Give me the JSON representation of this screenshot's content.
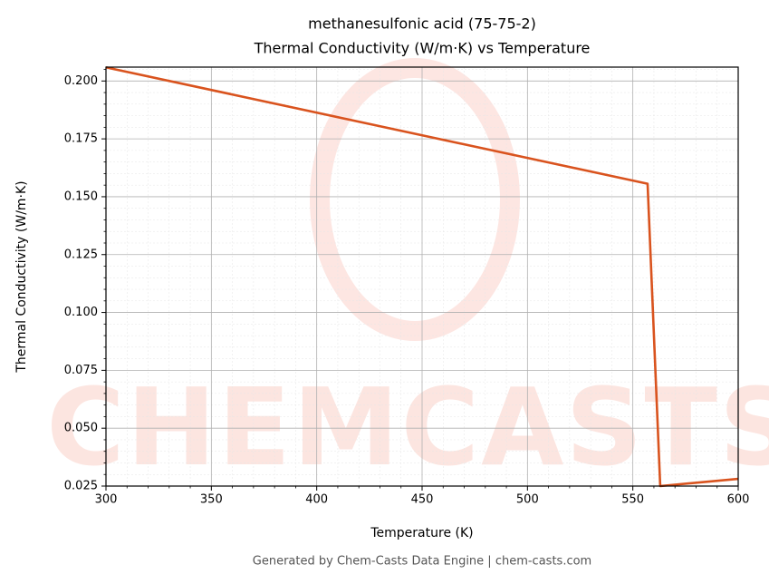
{
  "chart_data": {
    "type": "line",
    "title": "methanesulfonic acid (75-75-2)",
    "subtitle": "Thermal Conductivity (W/m·K) vs Temperature",
    "x_label": "Temperature (K)",
    "y_label": "Thermal Conductivity (W/m·K)",
    "footer": "Generated by Chem-Casts Data Engine | chem-casts.com",
    "watermark": "CHEMCASTS",
    "x": [
      300,
      557,
      563,
      600
    ],
    "series": [
      {
        "name": "Thermal Conductivity",
        "color": "#d9531e",
        "values": [
          0.2059,
          0.1556,
          0.025,
          0.0281
        ]
      }
    ],
    "xlim": [
      300,
      600
    ],
    "ylim": [
      0.025,
      0.206
    ],
    "xticks": [
      300,
      350,
      400,
      450,
      500,
      550,
      600
    ],
    "yticks": [
      {
        "value": 0.025,
        "label": "0.025"
      },
      {
        "value": 0.05,
        "label": "0.050"
      },
      {
        "value": 0.075,
        "label": "0.075"
      },
      {
        "value": 0.1,
        "label": "0.100"
      },
      {
        "value": 0.125,
        "label": "0.125"
      },
      {
        "value": 0.15,
        "label": "0.150"
      },
      {
        "value": 0.175,
        "label": "0.175"
      },
      {
        "value": 0.2,
        "label": "0.200"
      }
    ],
    "grid": true,
    "minor_divisions": 5
  }
}
